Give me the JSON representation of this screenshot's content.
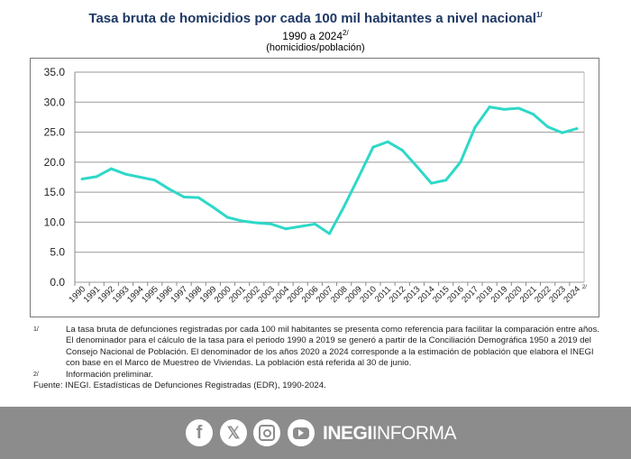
{
  "chart_data": {
    "type": "line",
    "title": "Tasa bruta de homicidios por cada 100 mil habitantes a nivel nacional",
    "title_sup": "1/",
    "subtitle": "1990 a 2024",
    "subtitle_sup": "2/",
    "unit": "(homicidios/población)",
    "xlabel": "",
    "ylabel": "",
    "ylim": [
      0,
      35
    ],
    "yticks": [
      "0.0",
      "5.0",
      "10.0",
      "15.0",
      "20.0",
      "25.0",
      "30.0",
      "35.0"
    ],
    "grid": true,
    "x": [
      "1990",
      "1991",
      "1992",
      "1993",
      "1994",
      "1995",
      "1996",
      "1997",
      "1998",
      "1999",
      "2000",
      "2001",
      "2002",
      "2003",
      "2004",
      "2005",
      "2006",
      "2007",
      "2008",
      "2009",
      "2010",
      "2011",
      "2012",
      "2013",
      "2014",
      "2015",
      "2016",
      "2017",
      "2018",
      "2019",
      "2020",
      "2021",
      "2022",
      "2023",
      "2024"
    ],
    "last_x_sup": "2/",
    "series": [
      {
        "name": "Tasa bruta de homicidios",
        "color": "#2ed8c8",
        "values": [
          17.2,
          17.6,
          18.9,
          18.0,
          17.5,
          17.0,
          15.5,
          14.2,
          14.1,
          12.5,
          10.8,
          10.2,
          9.9,
          9.7,
          8.9,
          9.3,
          9.7,
          8.1,
          12.6,
          17.5,
          22.5,
          23.4,
          22.0,
          19.3,
          16.5,
          17.0,
          20.0,
          25.8,
          29.2,
          28.8,
          29.0,
          28.0,
          25.9,
          24.9,
          25.6
        ]
      }
    ]
  },
  "notes": [
    {
      "mark": "1/",
      "text": "La tasa bruta de defunciones registradas por cada 100 mil habitantes se presenta como referencia para facilitar la comparación entre años. El denominador para el cálculo de la tasa para el periodo 1990 a 2019 se generó a partir de la Conciliación Demográfica 1950 a 2019 del Consejo Nacional de Población. El denominador de los años 2020 a 2024 corresponde a la estimación de población que elabora el INEGI con base en el Marco de Muestreo de Viviendas. La población está referida al 30 de junio."
    },
    {
      "mark": "2/",
      "text": "Información preliminar."
    }
  ],
  "source": "Fuente: INEGI. Estadísticas de Defunciones Registradas (EDR), 1990-2024.",
  "footer": {
    "brand_bold": "INEGI",
    "brand_light": "INFORMA",
    "icons": [
      "facebook-icon",
      "x-icon",
      "instagram-icon",
      "youtube-icon"
    ]
  }
}
